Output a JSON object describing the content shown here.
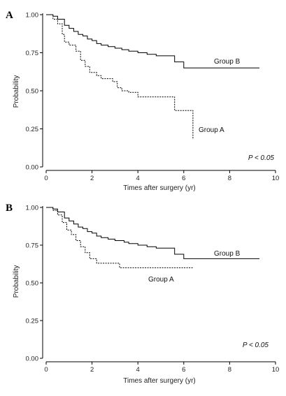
{
  "chart_data": [
    {
      "type": "line",
      "panel": "A",
      "xlabel": "Times after surgery (yr)",
      "ylabel": "Probability",
      "xlim": [
        0,
        10
      ],
      "ylim": [
        0,
        1
      ],
      "xticks": [
        0,
        2,
        4,
        6,
        8,
        10
      ],
      "yticks": [
        "0.00",
        "0.25",
        "0.50",
        "0.75",
        "1.00"
      ],
      "annotation": "P < 0.05",
      "series": [
        {
          "name": "Group B",
          "style": "solid",
          "points": [
            [
              0,
              1.0
            ],
            [
              0.3,
              0.99
            ],
            [
              0.5,
              0.97
            ],
            [
              0.8,
              0.93
            ],
            [
              1.0,
              0.91
            ],
            [
              1.2,
              0.89
            ],
            [
              1.4,
              0.87
            ],
            [
              1.6,
              0.86
            ],
            [
              1.8,
              0.84
            ],
            [
              2.0,
              0.83
            ],
            [
              2.2,
              0.81
            ],
            [
              2.4,
              0.8
            ],
            [
              2.7,
              0.79
            ],
            [
              3.0,
              0.78
            ],
            [
              3.3,
              0.77
            ],
            [
              3.6,
              0.76
            ],
            [
              4.0,
              0.75
            ],
            [
              4.4,
              0.74
            ],
            [
              4.8,
              0.73
            ],
            [
              5.6,
              0.73
            ],
            [
              5.6,
              0.69
            ],
            [
              6.0,
              0.69
            ],
            [
              6.0,
              0.65
            ],
            [
              9.3,
              0.65
            ]
          ]
        },
        {
          "name": "Group A",
          "style": "dashed",
          "points": [
            [
              0,
              1.0
            ],
            [
              0.3,
              0.97
            ],
            [
              0.5,
              0.94
            ],
            [
              0.7,
              0.87
            ],
            [
              0.8,
              0.82
            ],
            [
              1.0,
              0.8
            ],
            [
              1.3,
              0.76
            ],
            [
              1.5,
              0.7
            ],
            [
              1.7,
              0.66
            ],
            [
              1.9,
              0.62
            ],
            [
              2.2,
              0.6
            ],
            [
              2.4,
              0.58
            ],
            [
              2.9,
              0.56
            ],
            [
              3.1,
              0.52
            ],
            [
              3.3,
              0.5
            ],
            [
              3.6,
              0.49
            ],
            [
              4.0,
              0.46
            ],
            [
              5.6,
              0.46
            ],
            [
              5.6,
              0.37
            ],
            [
              6.4,
              0.37
            ],
            [
              6.4,
              0.18
            ]
          ]
        }
      ]
    },
    {
      "type": "line",
      "panel": "B",
      "xlabel": "Times after surgery (yr)",
      "ylabel": "Probability",
      "xlim": [
        0,
        10
      ],
      "ylim": [
        0,
        1
      ],
      "xticks": [
        0,
        2,
        4,
        6,
        8,
        10
      ],
      "yticks": [
        "0.00",
        "0.25",
        "0.50",
        "0.75",
        "1.00"
      ],
      "annotation": "P < 0.05",
      "series": [
        {
          "name": "Group B",
          "style": "solid",
          "points": [
            [
              0,
              1.0
            ],
            [
              0.3,
              0.99
            ],
            [
              0.5,
              0.97
            ],
            [
              0.8,
              0.93
            ],
            [
              1.0,
              0.91
            ],
            [
              1.2,
              0.89
            ],
            [
              1.4,
              0.87
            ],
            [
              1.6,
              0.86
            ],
            [
              1.8,
              0.84
            ],
            [
              2.0,
              0.83
            ],
            [
              2.2,
              0.81
            ],
            [
              2.4,
              0.8
            ],
            [
              2.7,
              0.79
            ],
            [
              3.0,
              0.78
            ],
            [
              3.4,
              0.77
            ],
            [
              3.6,
              0.76
            ],
            [
              4.0,
              0.75
            ],
            [
              4.4,
              0.74
            ],
            [
              4.8,
              0.73
            ],
            [
              5.6,
              0.73
            ],
            [
              5.6,
              0.69
            ],
            [
              6.0,
              0.69
            ],
            [
              6.0,
              0.66
            ],
            [
              9.3,
              0.66
            ]
          ]
        },
        {
          "name": "Group A",
          "style": "dashed",
          "points": [
            [
              0,
              1.0
            ],
            [
              0.3,
              0.98
            ],
            [
              0.5,
              0.95
            ],
            [
              0.7,
              0.9
            ],
            [
              0.9,
              0.85
            ],
            [
              1.1,
              0.82
            ],
            [
              1.3,
              0.78
            ],
            [
              1.5,
              0.74
            ],
            [
              1.7,
              0.7
            ],
            [
              1.9,
              0.66
            ],
            [
              2.2,
              0.63
            ],
            [
              2.5,
              0.63
            ],
            [
              3.2,
              0.6
            ],
            [
              6.4,
              0.6
            ]
          ]
        }
      ]
    }
  ]
}
